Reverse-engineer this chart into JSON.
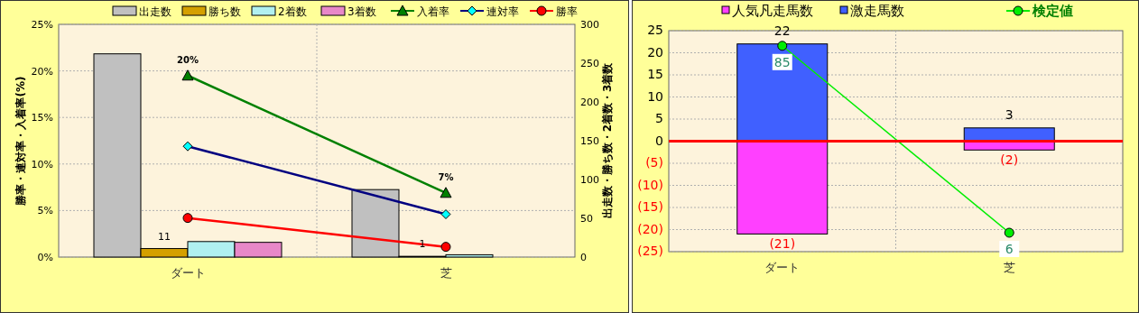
{
  "chart_data": [
    {
      "type": "bar",
      "categories": [
        "ダート",
        "芝"
      ],
      "ylabel": "勝率・連対率・入着率(%)",
      "y2label": "出走数・勝ち数・2着数・3着数",
      "ylim": [
        0,
        25
      ],
      "yticks": [
        {
          "value": 0,
          "label": "0%"
        },
        {
          "value": 5,
          "label": "5%"
        },
        {
          "value": 10,
          "label": "10%"
        },
        {
          "value": 15,
          "label": "15%"
        },
        {
          "value": 20,
          "label": "20%"
        },
        {
          "value": 25,
          "label": "25%"
        }
      ],
      "y2lim": [
        0,
        300
      ],
      "y2ticks": [
        0,
        50,
        100,
        150,
        200,
        250,
        300
      ],
      "grid": true,
      "legend": "top",
      "series": [
        {
          "name": "出走数",
          "color": "#c0c0c0",
          "axis": "y2",
          "values": [
            262,
            87
          ]
        },
        {
          "name": "勝ち数",
          "color": "#d4a000",
          "axis": "y2",
          "values": [
            11,
            1
          ],
          "value_labels": [
            "11",
            "1"
          ]
        },
        {
          "name": "2着数",
          "color": "#b0f0f0",
          "axis": "y2",
          "values": [
            20,
            3
          ]
        },
        {
          "name": "3着数",
          "color": "#e888c8",
          "axis": "y2",
          "values": [
            19,
            0
          ]
        },
        {
          "name": "入着率",
          "type": "line",
          "color": "#008000",
          "marker": "triangle",
          "axis": "y",
          "values": [
            19.5,
            6.9
          ],
          "value_labels": [
            "20%",
            "7%"
          ]
        },
        {
          "name": "連対率",
          "type": "line",
          "color": "#000080",
          "marker": "diamond",
          "axis": "y",
          "values": [
            11.9,
            4.6
          ]
        },
        {
          "name": "勝率",
          "type": "line",
          "color": "#ff0000",
          "marker": "circle",
          "axis": "y",
          "values": [
            4.2,
            1.1
          ]
        }
      ]
    },
    {
      "type": "bar",
      "stacked": true,
      "categories": [
        "ダート",
        "芝"
      ],
      "ylim": [
        -25,
        25
      ],
      "yticks": [
        {
          "value": -25,
          "label": "(25)"
        },
        {
          "value": -20,
          "label": "(20)"
        },
        {
          "value": -15,
          "label": "(15)"
        },
        {
          "value": -10,
          "label": "(10)"
        },
        {
          "value": -5,
          "label": "(5)"
        },
        0,
        5,
        10,
        15,
        20,
        25
      ],
      "y2lim": [
        -2,
        91.4
      ],
      "tick_labels": "xy",
      "grid": true,
      "legend": "top",
      "ref_lines": [
        {
          "axis": "y",
          "value": 0,
          "color": "#ff0000"
        }
      ],
      "series": [
        {
          "name": "人気凡走馬数",
          "color": "#ff40ff",
          "axis": "y",
          "values": [
            -21,
            -2
          ],
          "value_labels": [
            "(21)",
            "(2)"
          ]
        },
        {
          "name": "激走馬数",
          "color": "#4060ff",
          "axis": "y",
          "values": [
            22,
            3
          ],
          "value_labels": [
            "22",
            "3"
          ]
        },
        {
          "name": "検定値",
          "type": "line",
          "color": "#00ee00",
          "marker": "circle",
          "axis": "y2",
          "values": [
            85,
            6
          ],
          "value_labels": [
            "85",
            "6"
          ]
        }
      ]
    }
  ]
}
